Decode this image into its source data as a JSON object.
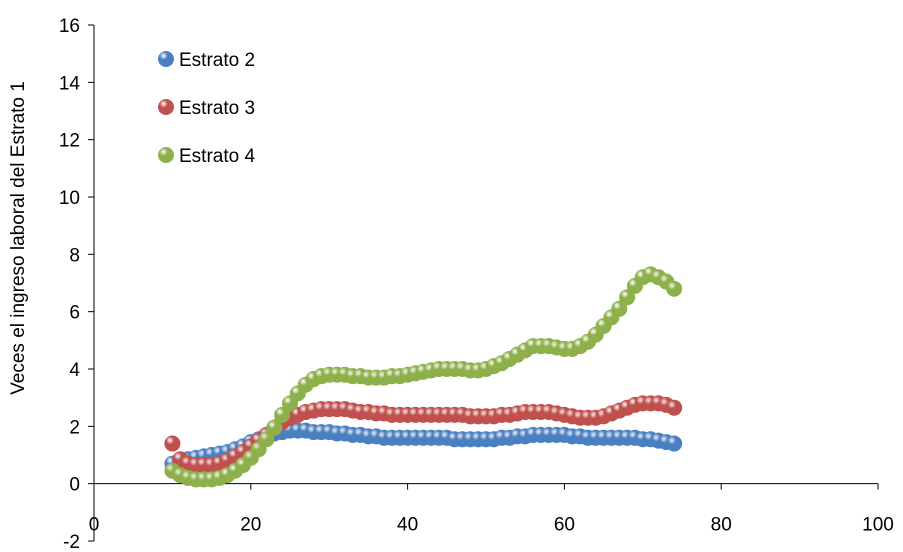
{
  "chart_data": {
    "type": "scatter",
    "title": "",
    "xlabel": "",
    "ylabel": "Veces el ingreso laboral del Estrato 1",
    "xlim": [
      0,
      100
    ],
    "ylim": [
      -2,
      16
    ],
    "xticks": [
      0,
      20,
      40,
      60,
      80,
      100
    ],
    "yticks": [
      -2,
      0,
      2,
      4,
      6,
      8,
      10,
      12,
      14,
      16
    ],
    "grid": false,
    "legend_position": "top-left",
    "series": [
      {
        "name": "Estrato 2",
        "color": "#4a7fc1",
        "x": [
          10,
          11,
          12,
          13,
          14,
          15,
          16,
          17,
          18,
          19,
          20,
          21,
          22,
          23,
          24,
          25,
          26,
          27,
          28,
          29,
          30,
          31,
          32,
          33,
          34,
          35,
          36,
          37,
          38,
          39,
          40,
          41,
          42,
          43,
          44,
          45,
          46,
          47,
          48,
          49,
          50,
          51,
          52,
          53,
          54,
          55,
          56,
          57,
          58,
          59,
          60,
          61,
          62,
          63,
          64,
          65,
          66,
          67,
          68,
          69,
          70,
          71,
          72,
          73,
          74
        ],
        "y": [
          0.7,
          0.8,
          0.85,
          0.9,
          0.95,
          1.0,
          1.05,
          1.1,
          1.2,
          1.3,
          1.45,
          1.55,
          1.65,
          1.75,
          1.8,
          1.85,
          1.85,
          1.85,
          1.8,
          1.8,
          1.8,
          1.75,
          1.75,
          1.7,
          1.7,
          1.65,
          1.65,
          1.6,
          1.6,
          1.6,
          1.6,
          1.6,
          1.6,
          1.6,
          1.6,
          1.6,
          1.55,
          1.55,
          1.55,
          1.55,
          1.55,
          1.55,
          1.6,
          1.6,
          1.65,
          1.65,
          1.7,
          1.7,
          1.7,
          1.7,
          1.7,
          1.65,
          1.65,
          1.6,
          1.6,
          1.6,
          1.6,
          1.6,
          1.6,
          1.6,
          1.55,
          1.55,
          1.5,
          1.45,
          1.4
        ]
      },
      {
        "name": "Estrato 3",
        "color": "#c0504d",
        "x": [
          10,
          11,
          12,
          13,
          14,
          15,
          16,
          17,
          18,
          19,
          20,
          21,
          22,
          23,
          24,
          25,
          26,
          27,
          28,
          29,
          30,
          31,
          32,
          33,
          34,
          35,
          36,
          37,
          38,
          39,
          40,
          41,
          42,
          43,
          44,
          45,
          46,
          47,
          48,
          49,
          50,
          51,
          52,
          53,
          54,
          55,
          56,
          57,
          58,
          59,
          60,
          61,
          62,
          63,
          64,
          65,
          66,
          67,
          68,
          69,
          70,
          71,
          72,
          73,
          74
        ],
        "y": [
          1.4,
          0.85,
          0.7,
          0.65,
          0.65,
          0.65,
          0.7,
          0.8,
          0.95,
          1.1,
          1.3,
          1.5,
          1.7,
          1.95,
          2.15,
          2.3,
          2.4,
          2.5,
          2.55,
          2.6,
          2.6,
          2.6,
          2.6,
          2.55,
          2.5,
          2.5,
          2.45,
          2.45,
          2.4,
          2.4,
          2.4,
          2.4,
          2.4,
          2.4,
          2.4,
          2.4,
          2.4,
          2.4,
          2.35,
          2.35,
          2.35,
          2.35,
          2.4,
          2.4,
          2.45,
          2.5,
          2.5,
          2.5,
          2.5,
          2.45,
          2.4,
          2.35,
          2.3,
          2.3,
          2.3,
          2.35,
          2.45,
          2.55,
          2.65,
          2.75,
          2.8,
          2.8,
          2.8,
          2.75,
          2.65
        ]
      },
      {
        "name": "Estrato 4",
        "color": "#8db04a",
        "x": [
          10,
          11,
          12,
          13,
          14,
          15,
          16,
          17,
          18,
          19,
          20,
          21,
          22,
          23,
          24,
          25,
          26,
          27,
          28,
          29,
          30,
          31,
          32,
          33,
          34,
          35,
          36,
          37,
          38,
          39,
          40,
          41,
          42,
          43,
          44,
          45,
          46,
          47,
          48,
          49,
          50,
          51,
          52,
          53,
          54,
          55,
          56,
          57,
          58,
          59,
          60,
          61,
          62,
          63,
          64,
          65,
          66,
          67,
          68,
          69,
          70,
          71,
          72,
          73,
          74
        ],
        "y": [
          0.45,
          0.3,
          0.2,
          0.15,
          0.15,
          0.15,
          0.2,
          0.3,
          0.45,
          0.65,
          0.9,
          1.2,
          1.55,
          1.95,
          2.4,
          2.8,
          3.15,
          3.45,
          3.65,
          3.75,
          3.8,
          3.8,
          3.8,
          3.75,
          3.75,
          3.7,
          3.7,
          3.7,
          3.75,
          3.75,
          3.8,
          3.85,
          3.9,
          3.95,
          4.0,
          4.0,
          4.0,
          4.0,
          3.95,
          3.95,
          4.0,
          4.1,
          4.2,
          4.35,
          4.5,
          4.65,
          4.8,
          4.8,
          4.8,
          4.75,
          4.7,
          4.7,
          4.8,
          4.95,
          5.2,
          5.5,
          5.8,
          6.1,
          6.5,
          6.9,
          7.2,
          7.3,
          7.2,
          7.05,
          6.8
        ]
      }
    ]
  }
}
